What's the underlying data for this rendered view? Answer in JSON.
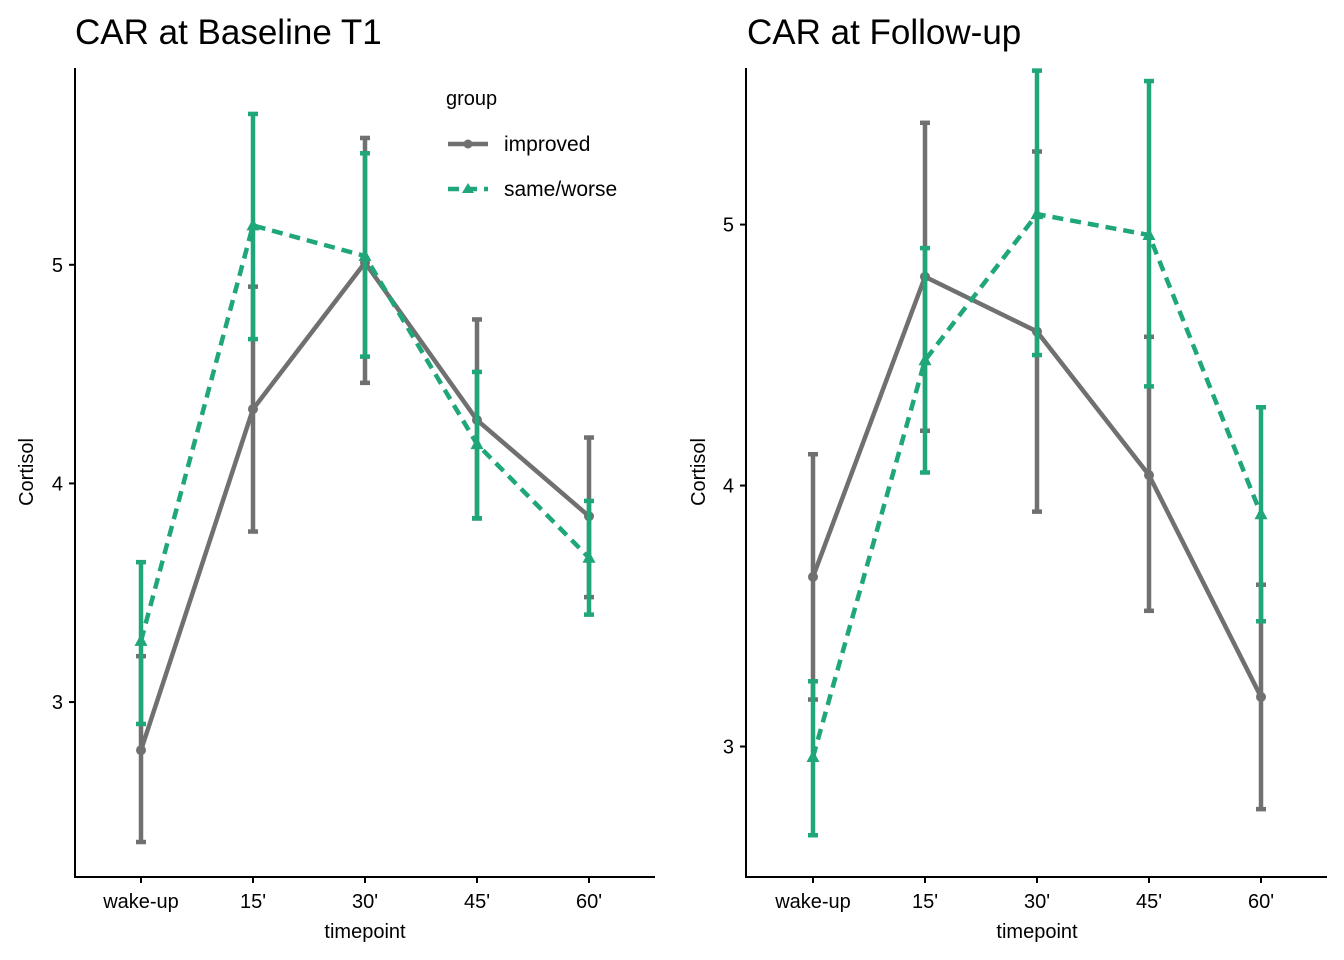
{
  "colors": {
    "improved": "#707070",
    "same_worse": "#1FA67A",
    "axis": "#000000",
    "background": "#FFFFFF"
  },
  "legend": {
    "title": "group",
    "items": [
      {
        "label": "improved",
        "color": "#707070",
        "linetype": "solid",
        "marker": "circle"
      },
      {
        "label": "same/worse",
        "color": "#1FA67A",
        "linetype": "dashed",
        "marker": "triangle"
      }
    ]
  },
  "chart_data": [
    {
      "type": "line",
      "title": "CAR at Baseline T1",
      "xlabel": "timepoint",
      "ylabel": "Cortisol",
      "categories": [
        "wake-up",
        "15'",
        "30'",
        "45'",
        "60'"
      ],
      "ylim": [
        2.2,
        5.9
      ],
      "yticks": [
        3,
        4,
        5
      ],
      "grid": false,
      "legend_position": "top-right",
      "series": [
        {
          "name": "improved",
          "values": [
            2.78,
            4.34,
            5.01,
            4.29,
            3.85
          ],
          "lower": [
            2.36,
            3.78,
            4.46,
            3.84,
            3.48
          ],
          "upper": [
            3.21,
            4.9,
            5.58,
            4.75,
            4.21
          ]
        },
        {
          "name": "same/worse",
          "values": [
            3.28,
            5.18,
            5.04,
            4.18,
            3.66
          ],
          "lower": [
            2.9,
            4.66,
            4.58,
            3.84,
            3.4
          ],
          "upper": [
            3.64,
            5.69,
            5.51,
            4.51,
            3.92
          ]
        }
      ]
    },
    {
      "type": "line",
      "title": "CAR at Follow-up",
      "xlabel": "timepoint",
      "ylabel": "Cortisol",
      "categories": [
        "wake-up",
        "15'",
        "30'",
        "45'",
        "60'"
      ],
      "ylim": [
        2.5,
        5.6
      ],
      "yticks": [
        3,
        4,
        5
      ],
      "grid": false,
      "series": [
        {
          "name": "improved",
          "values": [
            3.65,
            4.8,
            4.59,
            4.04,
            3.19
          ],
          "lower": [
            3.18,
            4.21,
            3.9,
            3.52,
            2.76
          ],
          "upper": [
            4.12,
            5.39,
            5.28,
            4.57,
            3.62
          ]
        },
        {
          "name": "same/worse",
          "values": [
            2.96,
            4.48,
            5.04,
            4.96,
            3.89
          ],
          "lower": [
            2.66,
            4.05,
            4.5,
            4.38,
            3.48
          ],
          "upper": [
            3.25,
            4.91,
            5.59,
            5.55,
            4.3
          ]
        }
      ]
    }
  ]
}
